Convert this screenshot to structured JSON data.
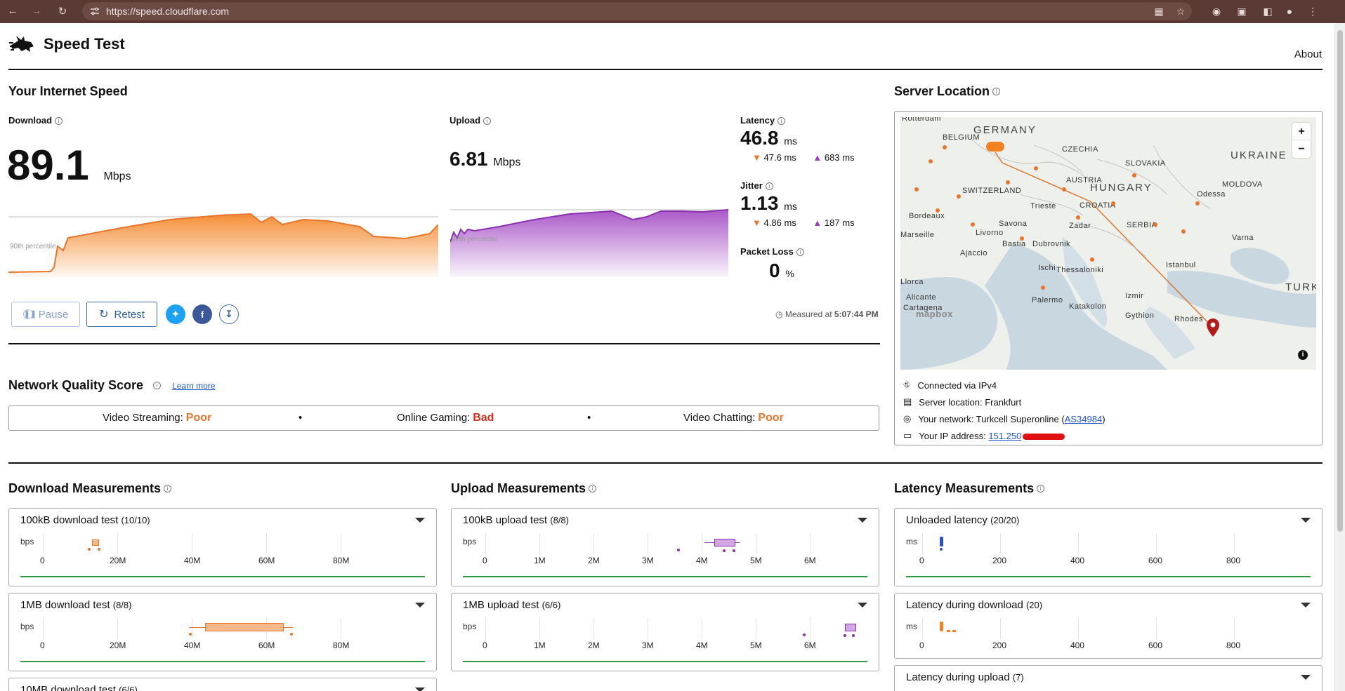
{
  "browser": {
    "url": "https://speed.cloudflare.com"
  },
  "header": {
    "title": "Speed Test",
    "about": "About"
  },
  "speed": {
    "heading": "Your Internet Speed",
    "download": {
      "label": "Download",
      "value": "89.1",
      "unit": "Mbps",
      "percentile": "90th percentile"
    },
    "upload": {
      "label": "Upload",
      "value": "6.81",
      "unit": "Mbps",
      "percentile": "90th percentile"
    },
    "latency": {
      "label": "Latency",
      "value": "46.8",
      "unit": "ms",
      "down": "47.6",
      "down_unit": "ms",
      "up": "683",
      "up_unit": "ms"
    },
    "jitter": {
      "label": "Jitter",
      "value": "1.13",
      "unit": "ms",
      "down": "4.86",
      "down_unit": "ms",
      "up": "187",
      "up_unit": "ms"
    },
    "packet_loss": {
      "label": "Packet Loss",
      "value": "0",
      "unit": "%"
    },
    "pause": "Pause",
    "retest": "Retest",
    "measured_prefix": "Measured at",
    "measured_time": "5:07:44 PM"
  },
  "quality": {
    "heading": "Network Quality Score",
    "learn_more": "Learn more",
    "items": [
      {
        "label": "Video Streaming:",
        "value": "Poor"
      },
      {
        "label": "Online Gaming:",
        "value": "Bad"
      },
      {
        "label": "Video Chatting:",
        "value": "Poor"
      }
    ],
    "bullet": "•"
  },
  "server": {
    "heading": "Server Location",
    "map_labels": [
      "GERMANY",
      "CZECHIA",
      "SLOVAKIA",
      "UKRAINE",
      "MOLDOVA",
      "AUSTRIA",
      "HUNGARY",
      "SWITZERLAND",
      "CROATIA",
      "SERBIA",
      "BELGIUM",
      "Rotterdam",
      "Bordeaux",
      "Trieste",
      "Zadar",
      "Savona",
      "Livorno",
      "Bastia",
      "Dubrovnik",
      "Ajaccio",
      "Marseille",
      "Odessa",
      "Varna",
      "Istanbul",
      "Izmir",
      "Ischi",
      "Thessaloniki",
      "Palermo",
      "Katakolon",
      "Gythion",
      "Rhodes",
      "Alicante",
      "Cartagena",
      "Llorca",
      "TURKI",
      "mapbox"
    ],
    "zoom_in": "+",
    "zoom_out": "−",
    "connected": "Connected via IPv4",
    "location": "Server location: Frankfurt",
    "network_prefix": "Your network: Turkcell Superonline (",
    "network_as": "AS34984",
    "network_suffix": ")",
    "ip_prefix": "Your IP address:",
    "ip": "151.250"
  },
  "download_measurements": {
    "heading": "Download Measurements",
    "unit": "bps",
    "ticks": [
      "0",
      "20M",
      "40M",
      "60M",
      "80M"
    ],
    "tests": [
      {
        "title": "100kB download test",
        "count": "(10/10)"
      },
      {
        "title": "1MB download test",
        "count": "(8/8)"
      },
      {
        "title": "10MB download test",
        "count": "(6/6)"
      }
    ]
  },
  "upload_measurements": {
    "heading": "Upload Measurements",
    "unit": "bps",
    "ticks": [
      "0",
      "1M",
      "2M",
      "3M",
      "4M",
      "5M",
      "6M"
    ],
    "tests": [
      {
        "title": "100kB upload test",
        "count": "(8/8)"
      },
      {
        "title": "1MB upload test",
        "count": "(6/6)"
      }
    ]
  },
  "latency_measurements": {
    "heading": "Latency Measurements",
    "unit": "ms",
    "ticks": [
      "0",
      "200",
      "400",
      "600",
      "800"
    ],
    "tests": [
      {
        "title": "Unloaded latency",
        "count": "(20/20)"
      },
      {
        "title": "Latency during download",
        "count": "(20)"
      },
      {
        "title": "Latency during upload",
        "count": "(7)"
      }
    ]
  },
  "colors": {
    "download": "#f48120",
    "upload": "#9b3bbf",
    "accent": "#2f5f9f",
    "good_line": "#2b9a3e"
  }
}
